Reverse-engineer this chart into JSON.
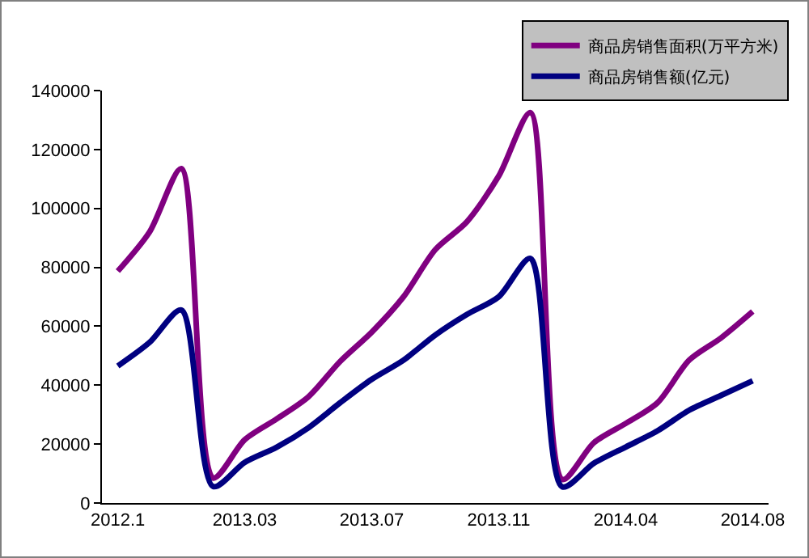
{
  "chart_data": {
    "type": "line",
    "categories": [
      "2012.1",
      null,
      null,
      null,
      "2013.03",
      null,
      null,
      null,
      "2013.07",
      null,
      null,
      null,
      "2013.11",
      null,
      null,
      null,
      "2014.04",
      null,
      null,
      null,
      "2014.08"
    ],
    "series": [
      {
        "name": "商品房销售面积(万平方米)",
        "color": "#800080",
        "values": [
          78700,
          92000,
          113500,
          8500,
          21500,
          28500,
          36000,
          48000,
          58000,
          70000,
          86000,
          95500,
          111000,
          132500,
          8000,
          20500,
          27000,
          34000,
          48500,
          56000,
          65000
        ]
      },
      {
        "name": "商品房销售额(亿元)",
        "color": "#000080",
        "values": [
          46500,
          54500,
          65500,
          5600,
          13800,
          18900,
          25500,
          34000,
          42000,
          48500,
          57000,
          64000,
          70000,
          83000,
          5500,
          13500,
          19000,
          24500,
          31500,
          36500,
          41500
        ]
      }
    ],
    "ylim": [
      0,
      140000
    ],
    "yticks": [
      0,
      20000,
      40000,
      60000,
      80000,
      100000,
      120000,
      140000
    ],
    "grid": false,
    "legend": "top right",
    "marker": "none",
    "line_style": "solid"
  }
}
